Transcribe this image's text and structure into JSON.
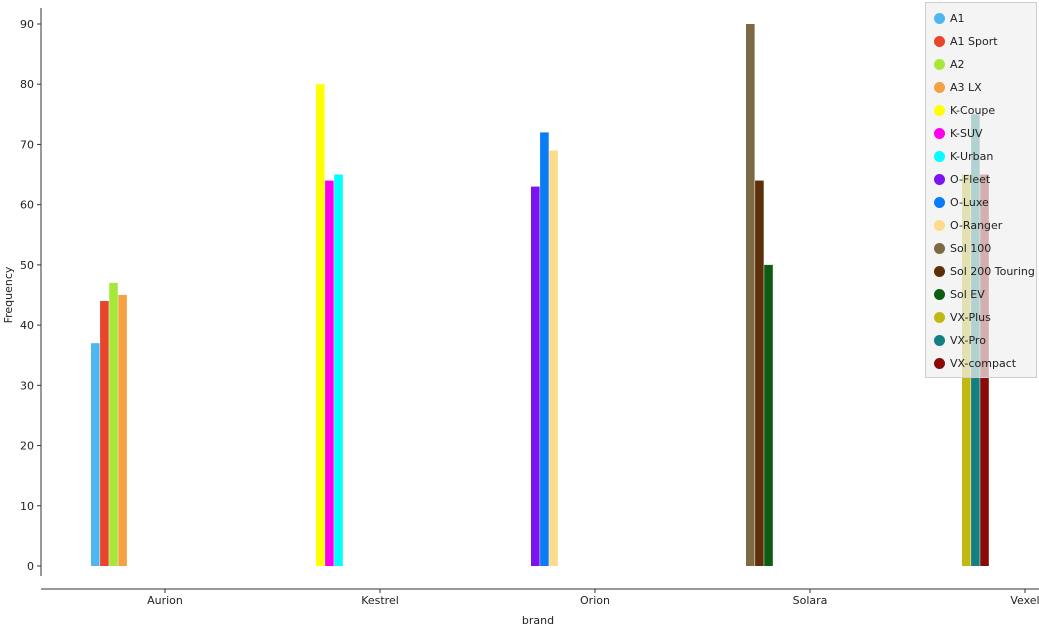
{
  "chart_data": {
    "type": "bar",
    "xlabel": "brand",
    "ylabel": "Frequency",
    "ylim": [
      0,
      90
    ],
    "yticks": [
      0,
      10,
      20,
      30,
      40,
      50,
      60,
      70,
      80,
      90
    ],
    "categories": [
      "Aurion",
      "Kestrel",
      "Orion",
      "Solara",
      "Vexel"
    ],
    "legend_position": "top-right",
    "grid": false,
    "series": [
      {
        "name": "A1",
        "color": "#4fb7f0",
        "category": "Aurion",
        "value": 37
      },
      {
        "name": "A1 Sport",
        "color": "#e8452c",
        "category": "Aurion",
        "value": 44
      },
      {
        "name": "A2",
        "color": "#a6e83a",
        "category": "Aurion",
        "value": 47
      },
      {
        "name": "A3 LX",
        "color": "#f5a142",
        "category": "Aurion",
        "value": 45
      },
      {
        "name": "K-Coupe",
        "color": "#ffff00",
        "category": "Kestrel",
        "value": 80
      },
      {
        "name": "K-SUV",
        "color": "#ff00ee",
        "category": "Kestrel",
        "value": 64
      },
      {
        "name": "K-Urban",
        "color": "#00ffff",
        "category": "Kestrel",
        "value": 65
      },
      {
        "name": "O-Fleet",
        "color": "#7a14f0",
        "category": "Orion",
        "value": 63
      },
      {
        "name": "O-Luxe",
        "color": "#0a7cf5",
        "category": "Orion",
        "value": 72
      },
      {
        "name": "O-Ranger",
        "color": "#fcdb8a",
        "category": "Orion",
        "value": 69
      },
      {
        "name": "Sol 100",
        "color": "#7d6a45",
        "category": "Solara",
        "value": 90
      },
      {
        "name": "Sol 200 Touring",
        "color": "#5c2e0a",
        "category": "Solara",
        "value": 64
      },
      {
        "name": "Sol EV",
        "color": "#0c5c12",
        "category": "Solara",
        "value": 50
      },
      {
        "name": "VX-Plus",
        "color": "#c2b812",
        "category": "Vexel",
        "value": 65
      },
      {
        "name": "VX-Pro",
        "color": "#128080",
        "category": "Vexel",
        "value": 75
      },
      {
        "name": "VX-compact",
        "color": "#8a0a0a",
        "category": "Vexel",
        "value": 65
      }
    ]
  }
}
